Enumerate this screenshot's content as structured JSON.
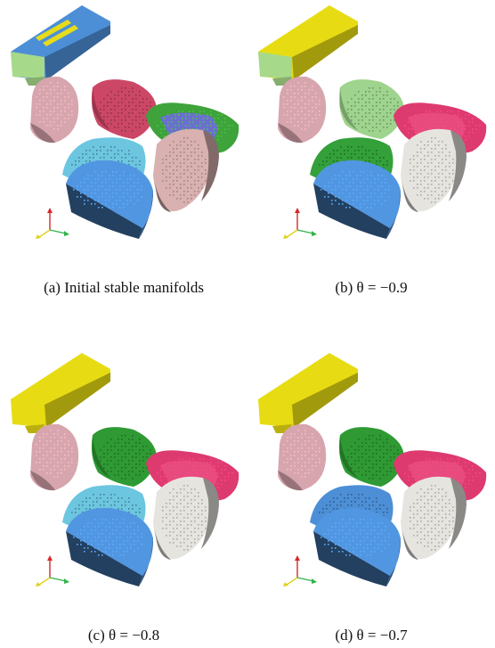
{
  "figure": {
    "panels": [
      {
        "id": "a",
        "label": "(a)",
        "caption": "Initial stable manifolds",
        "colors": {
          "bar": "#4d8fd6",
          "bar_end": "#a7d98a",
          "stripe": "#e6dc1a",
          "left_blob": "#d7a5ad",
          "red_blob": "#cc4766",
          "ring": "#3ea33a",
          "ring_inner": "#6b6fd0",
          "right_blob": "#d8b1b0",
          "cyan_blob": "#6cc6e0",
          "bottom_blob": "#4d8fd6"
        }
      },
      {
        "id": "b",
        "label": "(b)",
        "caption": "θ = −0.9",
        "colors": {
          "bar": "#e7dc13",
          "bar_end": "#a7d98a",
          "stripe": "#e7dc13",
          "left_blob": "#d7a5ad",
          "red_blob": "#9ed48e",
          "ring": "#dd3a70",
          "ring_inner": "#e64b7e",
          "right_blob": "#e6e4df",
          "cyan_blob": "#33a03a",
          "bottom_blob": "#4d8fd6"
        }
      },
      {
        "id": "c",
        "label": "(c)",
        "caption": "θ = −0.8",
        "colors": {
          "bar": "#e7dc13",
          "bar_end": "#e7dc13",
          "stripe": "#e7dc13",
          "left_blob": "#d7a5ad",
          "red_blob": "#2f9a33",
          "ring": "#dd3a70",
          "ring_inner": "#e64b7e",
          "right_blob": "#e6e4df",
          "cyan_blob": "#6cc6e0",
          "bottom_blob": "#4d8fd6"
        }
      },
      {
        "id": "d",
        "label": "(d)",
        "caption": "θ = −0.7",
        "colors": {
          "bar": "#e7dc13",
          "bar_end": "#e7dc13",
          "stripe": "#e7dc13",
          "left_blob": "#d7a5ad",
          "red_blob": "#2f9a33",
          "ring": "#dd3a70",
          "ring_inner": "#e64b7e",
          "right_blob": "#e6e4df",
          "cyan_blob": "#4d8fd6",
          "bottom_blob": "#4d8fd6"
        }
      }
    ],
    "axis_colors": {
      "z": "#d9262a",
      "x": "#e0d21a",
      "y": "#32b34a"
    }
  }
}
